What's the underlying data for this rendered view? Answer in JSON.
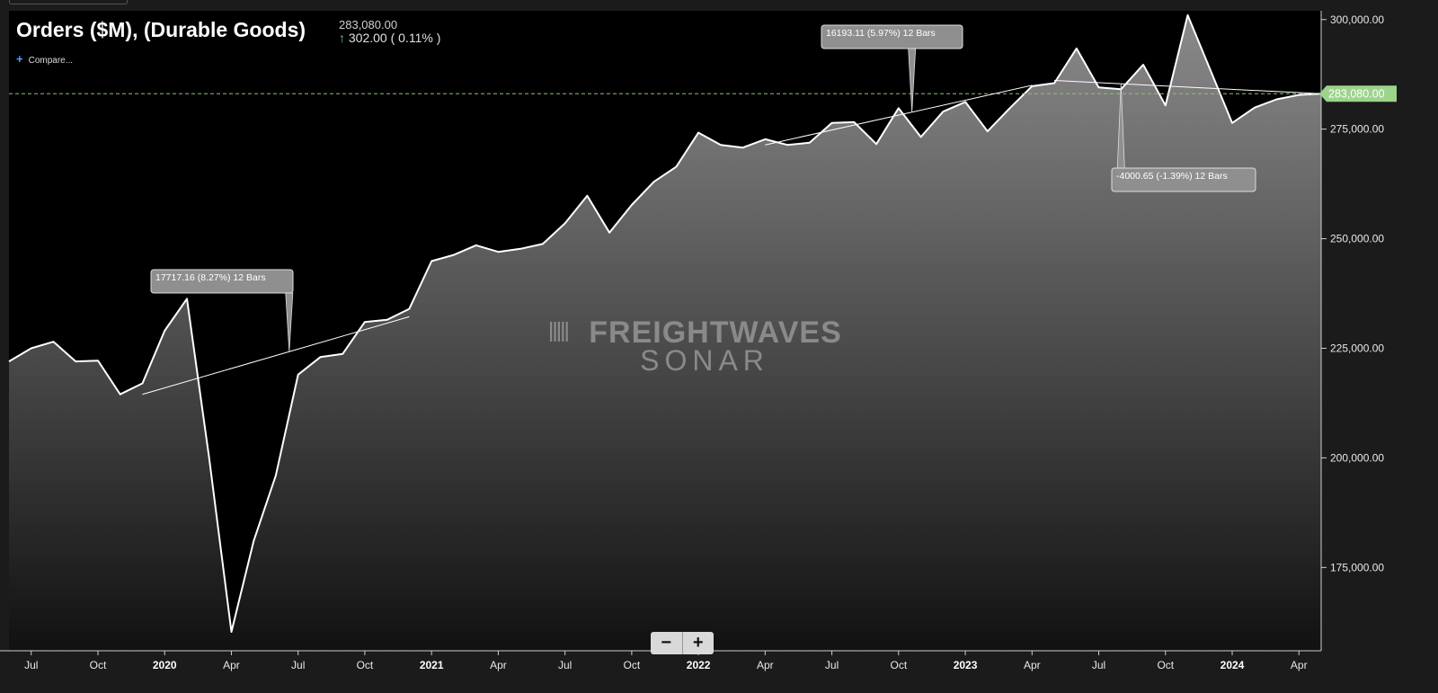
{
  "header": {
    "title": "Orders ($M), (Durable Goods)",
    "last_value": "283,080.00",
    "change": "302.00 ( 0.11% )",
    "compare_label": "Compare..."
  },
  "watermark": {
    "line1": "FREIGHTWAVES",
    "line2": "SONAR"
  },
  "colors": {
    "up": "#5fd37c",
    "line": "#ffffff",
    "label_bg": "#8f8f8f",
    "price_tag": "#9bd48a"
  },
  "zoom": {
    "minus": "−",
    "plus": "+"
  },
  "chart_data": {
    "type": "area",
    "title": "Orders ($M), (Durable Goods)",
    "x_ticks": [
      {
        "label": "Jul",
        "date": "2019-07"
      },
      {
        "label": "Oct",
        "date": "2019-10"
      },
      {
        "label": "2020",
        "date": "2020-01",
        "year": true
      },
      {
        "label": "Apr",
        "date": "2020-04"
      },
      {
        "label": "Jul",
        "date": "2020-07"
      },
      {
        "label": "Oct",
        "date": "2020-10"
      },
      {
        "label": "2021",
        "date": "2021-01",
        "year": true
      },
      {
        "label": "Apr",
        "date": "2021-04"
      },
      {
        "label": "Jul",
        "date": "2021-07"
      },
      {
        "label": "Oct",
        "date": "2021-10"
      },
      {
        "label": "2022",
        "date": "2022-01",
        "year": true
      },
      {
        "label": "Apr",
        "date": "2022-04"
      },
      {
        "label": "Jul",
        "date": "2022-07"
      },
      {
        "label": "Oct",
        "date": "2022-10"
      },
      {
        "label": "2023",
        "date": "2023-01",
        "year": true
      },
      {
        "label": "Apr",
        "date": "2023-04"
      },
      {
        "label": "Jul",
        "date": "2023-07"
      },
      {
        "label": "Oct",
        "date": "2023-10"
      },
      {
        "label": "2024",
        "date": "2024-01",
        "year": true
      },
      {
        "label": "Apr",
        "date": "2024-04"
      }
    ],
    "y_ticks": [
      {
        "label": "175,000.00",
        "value": 175000
      },
      {
        "label": "200,000.00",
        "value": 200000
      },
      {
        "label": "225,000.00",
        "value": 225000
      },
      {
        "label": "250,000.00",
        "value": 250000
      },
      {
        "label": "275,000.00",
        "value": 275000
      },
      {
        "label": "300,000.00",
        "value": 300000
      }
    ],
    "ylim": [
      156000,
      302000
    ],
    "xlim": [
      "2019-06",
      "2024-05"
    ],
    "last_value": {
      "label": "283,080.00",
      "value": 283080
    },
    "series": [
      {
        "x": [
          "2019-06",
          "2019-07",
          "2019-08",
          "2019-09",
          "2019-10",
          "2019-11",
          "2019-12",
          "2020-01",
          "2020-02",
          "2020-03",
          "2020-04",
          "2020-05",
          "2020-06",
          "2020-07",
          "2020-08",
          "2020-09",
          "2020-10",
          "2020-11",
          "2020-12",
          "2021-01",
          "2021-02",
          "2021-03",
          "2021-04",
          "2021-05",
          "2021-06",
          "2021-07",
          "2021-08",
          "2021-09",
          "2021-10",
          "2021-11",
          "2021-12",
          "2022-01",
          "2022-02",
          "2022-03",
          "2022-04",
          "2022-05",
          "2022-06",
          "2022-07",
          "2022-08",
          "2022-09",
          "2022-10",
          "2022-11",
          "2022-12",
          "2023-01",
          "2023-02",
          "2023-03",
          "2023-04",
          "2023-05",
          "2023-06",
          "2023-07",
          "2023-08",
          "2023-09",
          "2023-10",
          "2023-11",
          "2023-12",
          "2024-01",
          "2024-02",
          "2024-03",
          "2024-04",
          "2024-05"
        ],
        "y": [
          222000,
          225000,
          226500,
          222000,
          222200,
          214500,
          217000,
          229000,
          236300,
          200000,
          160300,
          181000,
          196000,
          219000,
          223000,
          223700,
          231000,
          231500,
          234000,
          244900,
          246300,
          248500,
          247000,
          247700,
          248800,
          253500,
          259800,
          251400,
          257700,
          263000,
          266400,
          274200,
          271400,
          270800,
          272700,
          271400,
          271900,
          276400,
          276600,
          271600,
          279800,
          273200,
          279000,
          281200,
          274500,
          279800,
          284800,
          285500,
          293400,
          284500,
          284100,
          289700,
          280400,
          301000,
          288700,
          276400,
          279900,
          281800,
          282800,
          283080
        ]
      }
    ],
    "trend_lines": [
      {
        "start": {
          "x": "2019-12",
          "y": 214500
        },
        "end": {
          "x": "2020-12",
          "y": 232200
        },
        "label": "17717.16 (8.27%) 12 Bars"
      },
      {
        "start": {
          "x": "2022-04",
          "y": 271400
        },
        "end": {
          "x": "2023-04",
          "y": 285000
        },
        "label": "16193.11 (5.97%) 12 Bars"
      },
      {
        "start": {
          "x": "2023-05",
          "y": 286100
        },
        "end": {
          "x": "2024-05",
          "y": 283080
        },
        "label": "-4000.65 (-1.39%) 12 Bars"
      }
    ]
  }
}
